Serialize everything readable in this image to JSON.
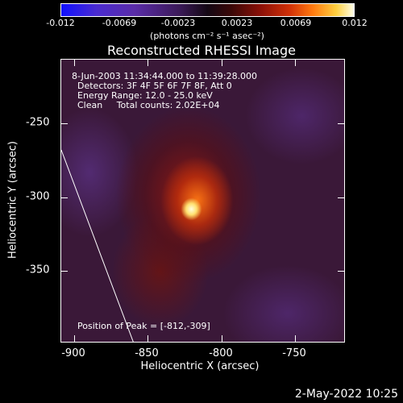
{
  "colorbar": {
    "ticks": [
      "-0.012",
      "-0.0069",
      "-0.0023",
      "0.0023",
      "0.0069",
      "0.012"
    ],
    "units": "(photons cm⁻² s⁻¹ asec⁻²)"
  },
  "title": "Reconstructed RHESSI Image",
  "info": {
    "time_range": "8-Jun-2003 11:34:44.000 to 11:39:28.000",
    "detectors": "Detectors: 3F 4F 5F 6F 7F 8F, Att 0",
    "energy": "Energy Range: 12.0 - 25.0 keV",
    "clean": "Clean     Total counts: 2.02E+04",
    "peak": "Position of Peak = [-812,-309]"
  },
  "axes": {
    "xlabel": "Heliocentric X (arcsec)",
    "ylabel": "Heliocentric Y (arcsec)",
    "xticks": [
      "-900",
      "-850",
      "-800",
      "-750"
    ],
    "yticks": [
      "-250",
      "-300",
      "-350"
    ]
  },
  "datestamp": "2-May-2022 10:25"
}
